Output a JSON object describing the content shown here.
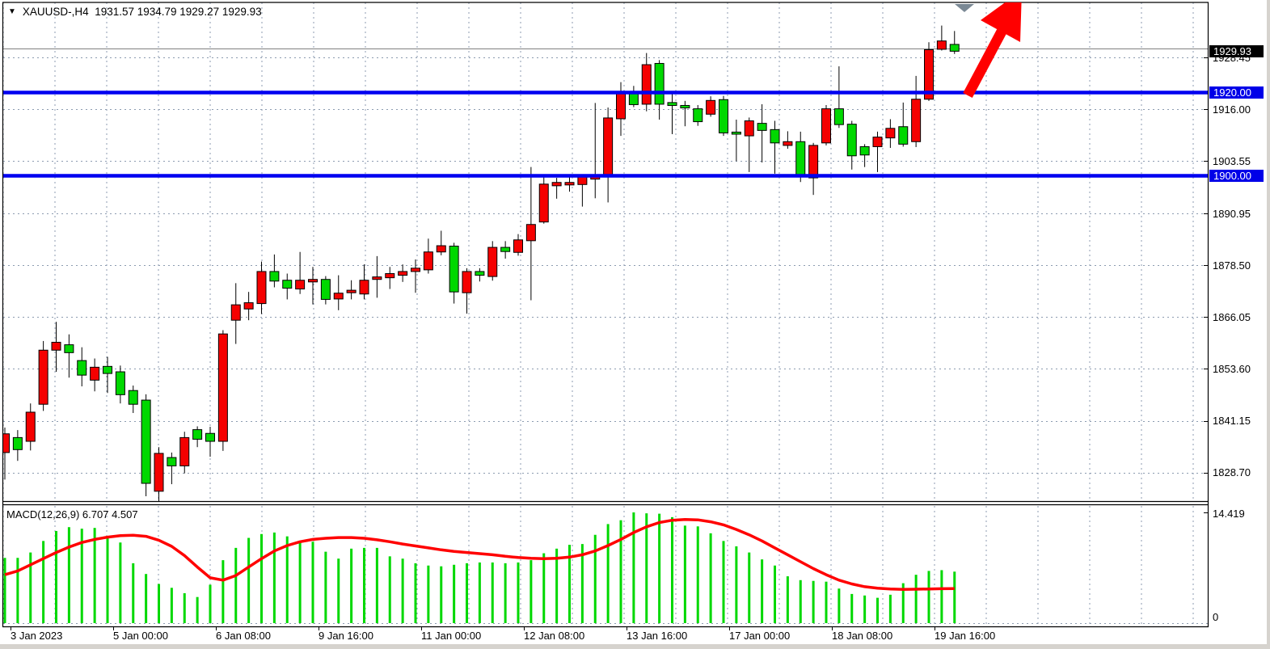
{
  "title_bar": {
    "caret_icon": "▼",
    "symbol_label": "XAUUSD-,H4",
    "ohlc_text": "1931.57 1934.79 1929.27 1929.93"
  },
  "indicator_label": "MACD(12,26,9) 6.707 4.507",
  "price_axis": {
    "current_price_badge": "1929.93",
    "level_badges": [
      "1920.00",
      "1900.00"
    ],
    "ticks": [
      "1928.45",
      "1916.00",
      "1903.55",
      "1890.95",
      "1878.50",
      "1866.05",
      "1853.60",
      "1841.15",
      "1828.70"
    ]
  },
  "macd_axis": {
    "max_label": "14.419",
    "zero_label": "0"
  },
  "time_axis": {
    "labels": [
      "3 Jan 2023",
      "5 Jan 00:00",
      "6 Jan 08:00",
      "9 Jan 16:00",
      "11 Jan 00:00",
      "12 Jan 08:00",
      "13 Jan 16:00",
      "17 Jan 00:00",
      "18 Jan 08:00",
      "19 Jan 16:00"
    ]
  },
  "colors": {
    "bull_candle": "#f50000",
    "bear_candle": "#00d800",
    "candle_outline": "#000000",
    "wick": "#000000",
    "grid": "#8c9bb0",
    "level_line": "#0000f0",
    "bid_line": "#808080",
    "macd_histogram": "#00d800",
    "macd_signal": "#ff0000",
    "badge_current_bg": "#000000",
    "badge_level_bg": "#0000e8",
    "arrow": "#ff0000",
    "end_marker": "#7a8894",
    "frame": "#000000"
  },
  "chart_data": {
    "type": "candlestick",
    "title": "XAUUSD-,H4",
    "symbol": "XAUUSD",
    "timeframe": "H4",
    "current_bar_ohlc": {
      "open": 1931.57,
      "high": 1934.79,
      "low": 1929.27,
      "close": 1929.93
    },
    "bull_color_meaning": "red body = close above open on this chart",
    "bear_color_meaning": "green body = close below open on this chart",
    "horizontal_levels": [
      1920.0,
      1900.0
    ],
    "bid_price_line": 1929.93,
    "price_axis_ticks": [
      1928.45,
      1916.0,
      1903.55,
      1890.95,
      1878.5,
      1866.05,
      1853.6,
      1841.15,
      1828.7
    ],
    "x_tick_labels": [
      "3 Jan 2023",
      "5 Jan 00:00",
      "6 Jan 08:00",
      "9 Jan 16:00",
      "11 Jan 00:00",
      "12 Jan 08:00",
      "13 Jan 16:00",
      "17 Jan 00:00",
      "18 Jan 08:00",
      "19 Jan 16:00"
    ],
    "candles_ohlc": [
      [
        1833.5,
        1839.5,
        1827.0,
        1838.0
      ],
      [
        1837.1,
        1838.9,
        1831.5,
        1834.2
      ],
      [
        1836.2,
        1845.3,
        1834.0,
        1843.2
      ],
      [
        1845.1,
        1860.3,
        1843.5,
        1858.1
      ],
      [
        1858.1,
        1864.9,
        1852.9,
        1860.0
      ],
      [
        1859.4,
        1861.9,
        1851.5,
        1857.5
      ],
      [
        1855.6,
        1858.8,
        1849.4,
        1852.1
      ],
      [
        1850.9,
        1856.1,
        1848.2,
        1854.0
      ],
      [
        1854.2,
        1856.5,
        1847.8,
        1852.5
      ],
      [
        1852.9,
        1854.4,
        1845.3,
        1847.4
      ],
      [
        1848.4,
        1849.6,
        1843.0,
        1845.1
      ],
      [
        1846.1,
        1847.5,
        1823.0,
        1826.1
      ],
      [
        1824.2,
        1834.8,
        1821.5,
        1833.3
      ],
      [
        1832.3,
        1833.5,
        1825.9,
        1830.3
      ],
      [
        1830.3,
        1838.5,
        1828.5,
        1837.1
      ],
      [
        1839.0,
        1839.8,
        1834.8,
        1836.7
      ],
      [
        1838.1,
        1839.7,
        1832.5,
        1836.2
      ],
      [
        1836.2,
        1862.9,
        1833.9,
        1862.0
      ],
      [
        1865.3,
        1874.2,
        1859.6,
        1869.0
      ],
      [
        1868.0,
        1872.1,
        1865.3,
        1869.5
      ],
      [
        1869.3,
        1879.4,
        1866.8,
        1877.0
      ],
      [
        1877.0,
        1881.1,
        1873.2,
        1874.7
      ],
      [
        1874.9,
        1876.5,
        1870.3,
        1873.0
      ],
      [
        1872.8,
        1881.7,
        1871.6,
        1874.9
      ],
      [
        1874.5,
        1878.1,
        1869.1,
        1875.1
      ],
      [
        1875.1,
        1875.9,
        1869.1,
        1870.3
      ],
      [
        1870.4,
        1876.1,
        1867.7,
        1871.8
      ],
      [
        1871.9,
        1874.9,
        1870.3,
        1872.5
      ],
      [
        1871.6,
        1878.7,
        1870.3,
        1874.9
      ],
      [
        1875.1,
        1880.7,
        1870.7,
        1875.7
      ],
      [
        1875.5,
        1878.1,
        1872.8,
        1876.5
      ],
      [
        1876.1,
        1878.7,
        1874.5,
        1877.0
      ],
      [
        1877.0,
        1879.9,
        1871.9,
        1877.8
      ],
      [
        1877.4,
        1884.9,
        1876.5,
        1881.7
      ],
      [
        1881.7,
        1886.8,
        1880.9,
        1883.2
      ],
      [
        1883.1,
        1883.9,
        1869.3,
        1872.1
      ],
      [
        1871.9,
        1877.8,
        1866.9,
        1877.0
      ],
      [
        1877.0,
        1877.8,
        1874.6,
        1876.1
      ],
      [
        1875.8,
        1884.3,
        1874.8,
        1882.8
      ],
      [
        1882.8,
        1884.3,
        1880.1,
        1881.8
      ],
      [
        1881.6,
        1886.0,
        1880.8,
        1884.6
      ],
      [
        1884.4,
        1902.1,
        1870.1,
        1888.3
      ],
      [
        1888.9,
        1899.9,
        1888.5,
        1898.0
      ],
      [
        1897.6,
        1899.5,
        1894.5,
        1898.4
      ],
      [
        1897.8,
        1899.7,
        1896.2,
        1898.4
      ],
      [
        1897.9,
        1900.3,
        1892.6,
        1899.9
      ],
      [
        1899.2,
        1917.5,
        1894.6,
        1900.1
      ],
      [
        1899.9,
        1916.4,
        1893.6,
        1913.9
      ],
      [
        1913.7,
        1922.5,
        1909.6,
        1920.0
      ],
      [
        1919.8,
        1921.6,
        1916.5,
        1917.1
      ],
      [
        1917.2,
        1929.5,
        1915.5,
        1926.7
      ],
      [
        1927.0,
        1927.8,
        1913.5,
        1917.2
      ],
      [
        1917.6,
        1919.8,
        1910.0,
        1916.9
      ],
      [
        1916.9,
        1918.0,
        1911.9,
        1916.3
      ],
      [
        1916.1,
        1917.0,
        1912.0,
        1913.0
      ],
      [
        1914.8,
        1919.1,
        1914.2,
        1918.1
      ],
      [
        1918.3,
        1919.2,
        1909.6,
        1910.3
      ],
      [
        1910.5,
        1913.5,
        1903.5,
        1910.0
      ],
      [
        1909.6,
        1914.0,
        1900.9,
        1913.2
      ],
      [
        1912.6,
        1917.2,
        1903.2,
        1910.9
      ],
      [
        1911.1,
        1913.2,
        1900.5,
        1907.9
      ],
      [
        1907.3,
        1910.7,
        1906.5,
        1908.2
      ],
      [
        1908.2,
        1910.6,
        1898.5,
        1899.8
      ],
      [
        1899.5,
        1907.9,
        1895.4,
        1907.3
      ],
      [
        1907.9,
        1917.0,
        1907.3,
        1916.1
      ],
      [
        1916.1,
        1926.3,
        1911.5,
        1912.3
      ],
      [
        1912.4,
        1913.2,
        1901.5,
        1904.8
      ],
      [
        1907.0,
        1907.6,
        1902.1,
        1905.0
      ],
      [
        1907.0,
        1910.6,
        1900.9,
        1909.3
      ],
      [
        1909.1,
        1913.6,
        1906.7,
        1911.4
      ],
      [
        1911.8,
        1917.6,
        1907.0,
        1907.6
      ],
      [
        1908.2,
        1924.0,
        1906.9,
        1918.4
      ],
      [
        1918.4,
        1932.1,
        1918.0,
        1930.3
      ],
      [
        1930.4,
        1936.1,
        1930.1,
        1932.4
      ],
      [
        1931.57,
        1934.79,
        1929.27,
        1929.93
      ]
    ],
    "macd": {
      "label": "MACD(12,26,9)",
      "macd_value": 6.707,
      "signal_value": 4.507,
      "axis_max": 14.419,
      "axis_min": 0,
      "histogram": [
        8.5,
        8.5,
        9.2,
        10.7,
        12.0,
        12.5,
        12.3,
        12.4,
        11.2,
        10.5,
        7.8,
        6.4,
        5.1,
        4.6,
        3.9,
        3.4,
        5.0,
        8.2,
        9.8,
        11.1,
        11.6,
        11.8,
        11.3,
        10.5,
        10.6,
        9.3,
        8.4,
        9.7,
        9.8,
        9.8,
        8.7,
        8.4,
        7.8,
        7.5,
        7.4,
        7.6,
        7.8,
        7.9,
        7.9,
        7.8,
        7.9,
        8.2,
        9.1,
        9.7,
        10.2,
        10.3,
        11.5,
        12.9,
        13.4,
        14.42,
        14.3,
        14.25,
        13.8,
        12.7,
        12.6,
        11.7,
        10.7,
        10.0,
        9.2,
        8.3,
        7.5,
        6.1,
        5.6,
        5.5,
        5.4,
        4.5,
        3.8,
        3.6,
        3.3,
        3.7,
        5.2,
        6.3,
        6.8,
        6.9,
        6.707
      ],
      "signal": [
        6.3,
        6.8,
        7.6,
        8.4,
        9.2,
        9.9,
        10.5,
        10.9,
        11.2,
        11.4,
        11.45,
        11.3,
        10.8,
        10.0,
        8.8,
        7.3,
        5.9,
        5.6,
        6.2,
        7.3,
        8.4,
        9.4,
        10.1,
        10.6,
        10.9,
        11.05,
        11.15,
        11.15,
        11.05,
        10.85,
        10.6,
        10.3,
        10.05,
        9.8,
        9.55,
        9.35,
        9.2,
        9.05,
        8.9,
        8.7,
        8.55,
        8.45,
        8.4,
        8.45,
        8.6,
        8.9,
        9.4,
        10.1,
        10.9,
        11.8,
        12.55,
        13.1,
        13.4,
        13.5,
        13.45,
        13.2,
        12.8,
        12.2,
        11.5,
        10.7,
        9.8,
        8.9,
        8.0,
        7.1,
        6.3,
        5.6,
        5.1,
        4.75,
        4.55,
        4.45,
        4.4,
        4.42,
        4.45,
        4.48,
        4.507
      ]
    },
    "annotations": {
      "up_arrow": "thick red arrow pointing up-right from last candles, clipped at top",
      "end_marker": "gray downward triangle at top near last bar"
    }
  }
}
